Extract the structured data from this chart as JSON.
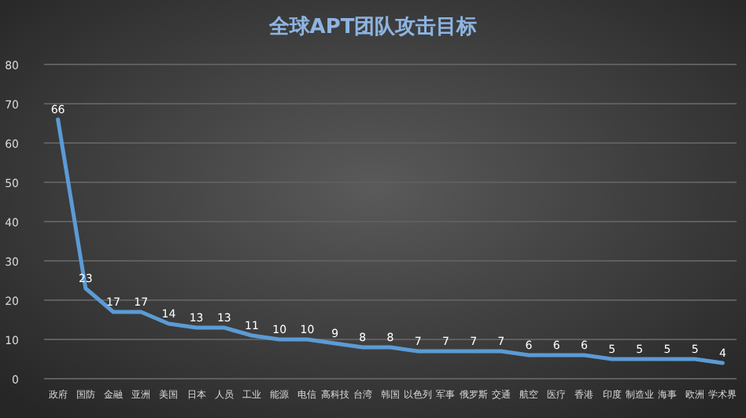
{
  "chart_data": {
    "type": "line",
    "title": "全球APT团队攻击目标",
    "categories": [
      "政府",
      "国防",
      "金融",
      "亚洲",
      "美国",
      "日本",
      "人员",
      "工业",
      "能源",
      "电信",
      "高科技",
      "台湾",
      "韩国",
      "以色列",
      "军事",
      "俄罗斯",
      "交通",
      "航空",
      "医疗",
      "香港",
      "印度",
      "制造业",
      "海事",
      "欧洲",
      "学术界"
    ],
    "series": [
      {
        "color": "#5b9bd5",
        "values": [
          66,
          23,
          17,
          17,
          14,
          13,
          13,
          11,
          10,
          10,
          9,
          8,
          8,
          7,
          7,
          7,
          7,
          6,
          6,
          6,
          5,
          5,
          5,
          5,
          4
        ]
      }
    ],
    "ylim": [
      0,
      80
    ],
    "yticks": [
      0,
      10,
      20,
      30,
      40,
      50,
      60,
      70,
      80
    ],
    "grid": "y",
    "data_labels": true,
    "marker": "none",
    "line_style": "solid"
  }
}
